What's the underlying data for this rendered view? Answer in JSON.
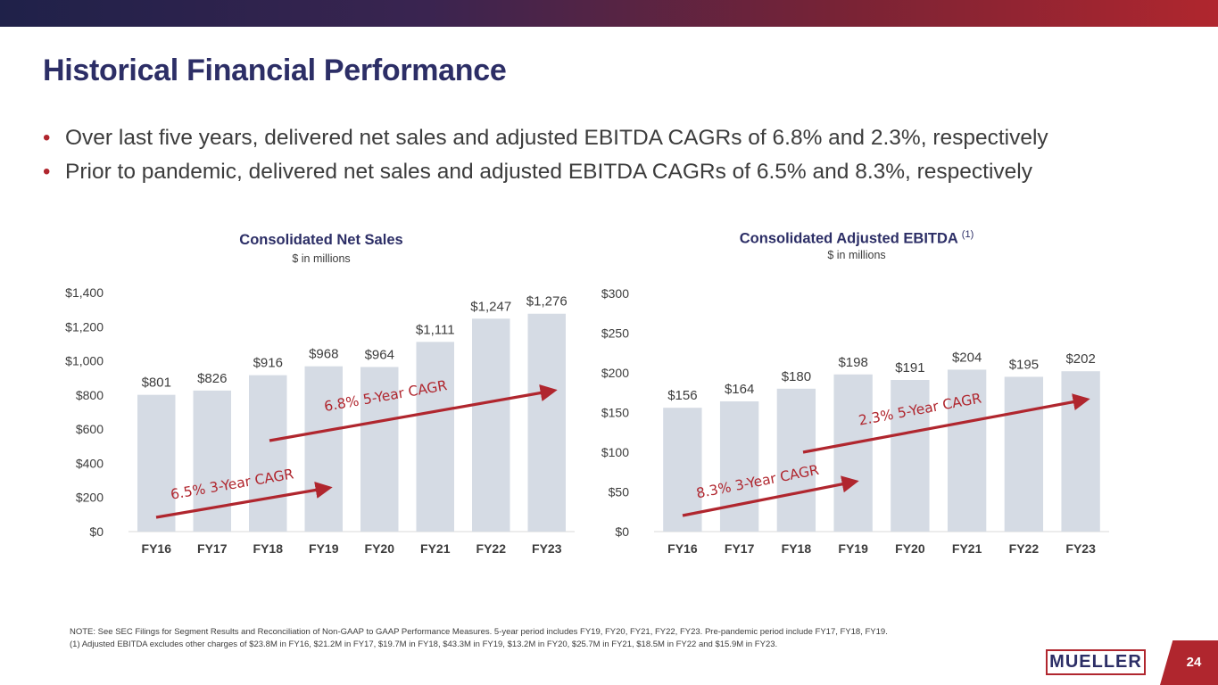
{
  "header": {
    "title": "Historical Financial Performance"
  },
  "bullets": [
    "Over last five years, delivered net sales and adjusted EBITDA CAGRs of 6.8% and 2.3%, respectively",
    "Prior to pandemic, delivered net sales and adjusted EBITDA CAGRs of 6.5% and 8.3%, respectively"
  ],
  "chart_data": [
    {
      "type": "bar",
      "title": "Consolidated Net Sales",
      "subtitle": "$ in millions",
      "categories": [
        "FY16",
        "FY17",
        "FY18",
        "FY19",
        "FY20",
        "FY21",
        "FY22",
        "FY23"
      ],
      "values": [
        801,
        826,
        916,
        968,
        964,
        1111,
        1247,
        1276
      ],
      "value_labels": [
        "$801",
        "$826",
        "$916",
        "$968",
        "$964",
        "$1,111",
        "$1,247",
        "$1,276"
      ],
      "ylim": [
        0,
        1400
      ],
      "yticks": [
        0,
        200,
        400,
        600,
        800,
        1000,
        1200,
        1400
      ],
      "ytick_labels": [
        "$0",
        "$200",
        "$400",
        "$600",
        "$800",
        "$1,000",
        "$1,200",
        "$1,400"
      ],
      "grid": false,
      "annotations": [
        {
          "label": "6.5% 3-Year CAGR",
          "from_category": "FY16",
          "to_category": "FY19"
        },
        {
          "label": "6.8% 5-Year CAGR",
          "from_category": "FY18",
          "to_category": "FY23"
        }
      ]
    },
    {
      "type": "bar",
      "title": "Consolidated Adjusted EBITDA",
      "title_note": "(1)",
      "subtitle": "$ in millions",
      "categories": [
        "FY16",
        "FY17",
        "FY18",
        "FY19",
        "FY20",
        "FY21",
        "FY22",
        "FY23"
      ],
      "values": [
        156,
        164,
        180,
        198,
        191,
        204,
        195,
        202
      ],
      "value_labels": [
        "$156",
        "$164",
        "$180",
        "$198",
        "$191",
        "$204",
        "$195",
        "$202"
      ],
      "ylim": [
        0,
        300
      ],
      "yticks": [
        0,
        50,
        100,
        150,
        200,
        250,
        300
      ],
      "ytick_labels": [
        "$0",
        "$50",
        "$100",
        "$150",
        "$200",
        "$250",
        "$300"
      ],
      "grid": false,
      "annotations": [
        {
          "label": "8.3% 3-Year CAGR",
          "from_category": "FY16",
          "to_category": "FY19"
        },
        {
          "label": "2.3% 5-Year CAGR",
          "from_category": "FY18",
          "to_category": "FY23"
        }
      ]
    }
  ],
  "colors": {
    "bar": "#d5dbe4",
    "arrow": "#b0262e",
    "title": "#2c2e66",
    "accent": "#b0262e"
  },
  "notes": [
    "NOTE:  See SEC Filings for Segment Results and Reconciliation of Non-GAAP to GAAP Performance Measures. 5-year period includes FY19, FY20, FY21, FY22, FY23.  Pre-pandemic period include FY17, FY18, FY19.",
    "(1)  Adjusted EBITDA excludes other charges of $23.8M in FY16, $21.2M in FY17, $19.7M in FY18, $43.3M in FY19, $13.2M in FY20, $25.7M in FY21, $18.5M in FY22 and $15.9M in FY23."
  ],
  "footer": {
    "logo_text": "MUELLER",
    "page_number": "24"
  }
}
